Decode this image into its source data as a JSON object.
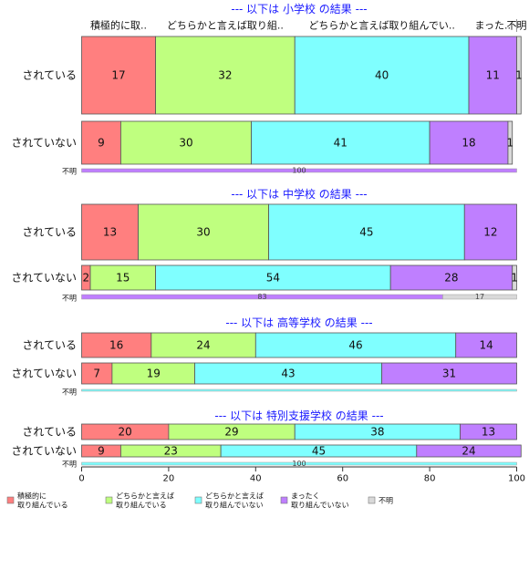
{
  "chart_data": {
    "type": "bar",
    "orientation": "horizontal-stacked-percent",
    "xlim": [
      0,
      100
    ],
    "xticks": [
      "0",
      "20",
      "40",
      "60",
      "80",
      "100"
    ],
    "grid": false,
    "legend_position": "bottom",
    "categories": [
      {
        "key": "c1",
        "label": "積極的に取..",
        "legend": [
          "積極的に",
          "取り組んでいる"
        ],
        "color": "#FF7F7F"
      },
      {
        "key": "c2",
        "label": "どちらかと言えば取り組..",
        "legend": [
          "どちらかと言えば",
          "取り組んでいる"
        ],
        "color": "#BFFF7F"
      },
      {
        "key": "c3",
        "label": "どちらかと言えば取り組んでい..",
        "legend": [
          "どちらかと言えば",
          "取り組んでいない"
        ],
        "color": "#7FFFFF"
      },
      {
        "key": "c4",
        "label": "まった..",
        "legend": [
          "まったく",
          "取り組んでいない"
        ],
        "color": "#BF7FFF"
      },
      {
        "key": "c5",
        "label": "不明",
        "legend": [
          "不明"
        ],
        "color": "#D9D9D9"
      }
    ],
    "panels": [
      {
        "title": "--- 以下は 小学校 の結果 ---",
        "header_labels": true,
        "rows": [
          {
            "label": "されている",
            "values": [
              17,
              32,
              40,
              11,
              1
            ],
            "shown": [
              "17",
              "32",
              "40",
              "11",
              "1"
            ]
          },
          {
            "label": "されていない",
            "values": [
              9,
              30,
              41,
              18,
              1
            ],
            "shown": [
              "9",
              "30",
              "41",
              "18",
              "1"
            ]
          }
        ],
        "unknown": {
          "label": "不明",
          "values": [
            0,
            0,
            0,
            100,
            0
          ],
          "shown": [
            "",
            "",
            "",
            "100",
            ""
          ]
        }
      },
      {
        "title": "--- 以下は 中学校 の結果 ---",
        "header_labels": false,
        "rows": [
          {
            "label": "されている",
            "values": [
              13,
              30,
              45,
              12,
              0
            ],
            "shown": [
              "13",
              "30",
              "45",
              "12",
              ""
            ]
          },
          {
            "label": "されていない",
            "values": [
              2,
              15,
              54,
              28,
              1
            ],
            "shown": [
              "2",
              "15",
              "54",
              "28",
              "1"
            ]
          }
        ],
        "unknown": {
          "label": "不明",
          "values": [
            0,
            0,
            0,
            83,
            17
          ],
          "shown": [
            "",
            "",
            "",
            "83",
            "17"
          ]
        }
      },
      {
        "title": "--- 以下は 高等学校 の結果 ---",
        "header_labels": false,
        "rows": [
          {
            "label": "されている",
            "values": [
              16,
              24,
              46,
              14,
              0
            ],
            "shown": [
              "16",
              "24",
              "46",
              "14",
              ""
            ]
          },
          {
            "label": "されていない",
            "values": [
              7,
              19,
              43,
              31,
              0
            ],
            "shown": [
              "7",
              "19",
              "43",
              "31",
              ""
            ]
          }
        ],
        "unknown": {
          "label": "不明",
          "values": [
            0,
            0,
            100,
            0,
            0
          ],
          "shown": [
            "",
            "",
            "",
            "",
            ""
          ]
        }
      },
      {
        "title": "--- 以下は 特別支援学校 の結果 ---",
        "header_labels": false,
        "rows": [
          {
            "label": "されている",
            "values": [
              20,
              29,
              38,
              13,
              0
            ],
            "shown": [
              "20",
              "29",
              "38",
              "13",
              ""
            ]
          },
          {
            "label": "されていない",
            "values": [
              9,
              23,
              45,
              24,
              0
            ],
            "shown": [
              "9",
              "23",
              "45",
              "24",
              ""
            ]
          }
        ],
        "unknown": {
          "label": "不明",
          "values": [
            0,
            0,
            100,
            0,
            0
          ],
          "shown": [
            "",
            "",
            "100",
            "",
            ""
          ]
        }
      }
    ]
  }
}
